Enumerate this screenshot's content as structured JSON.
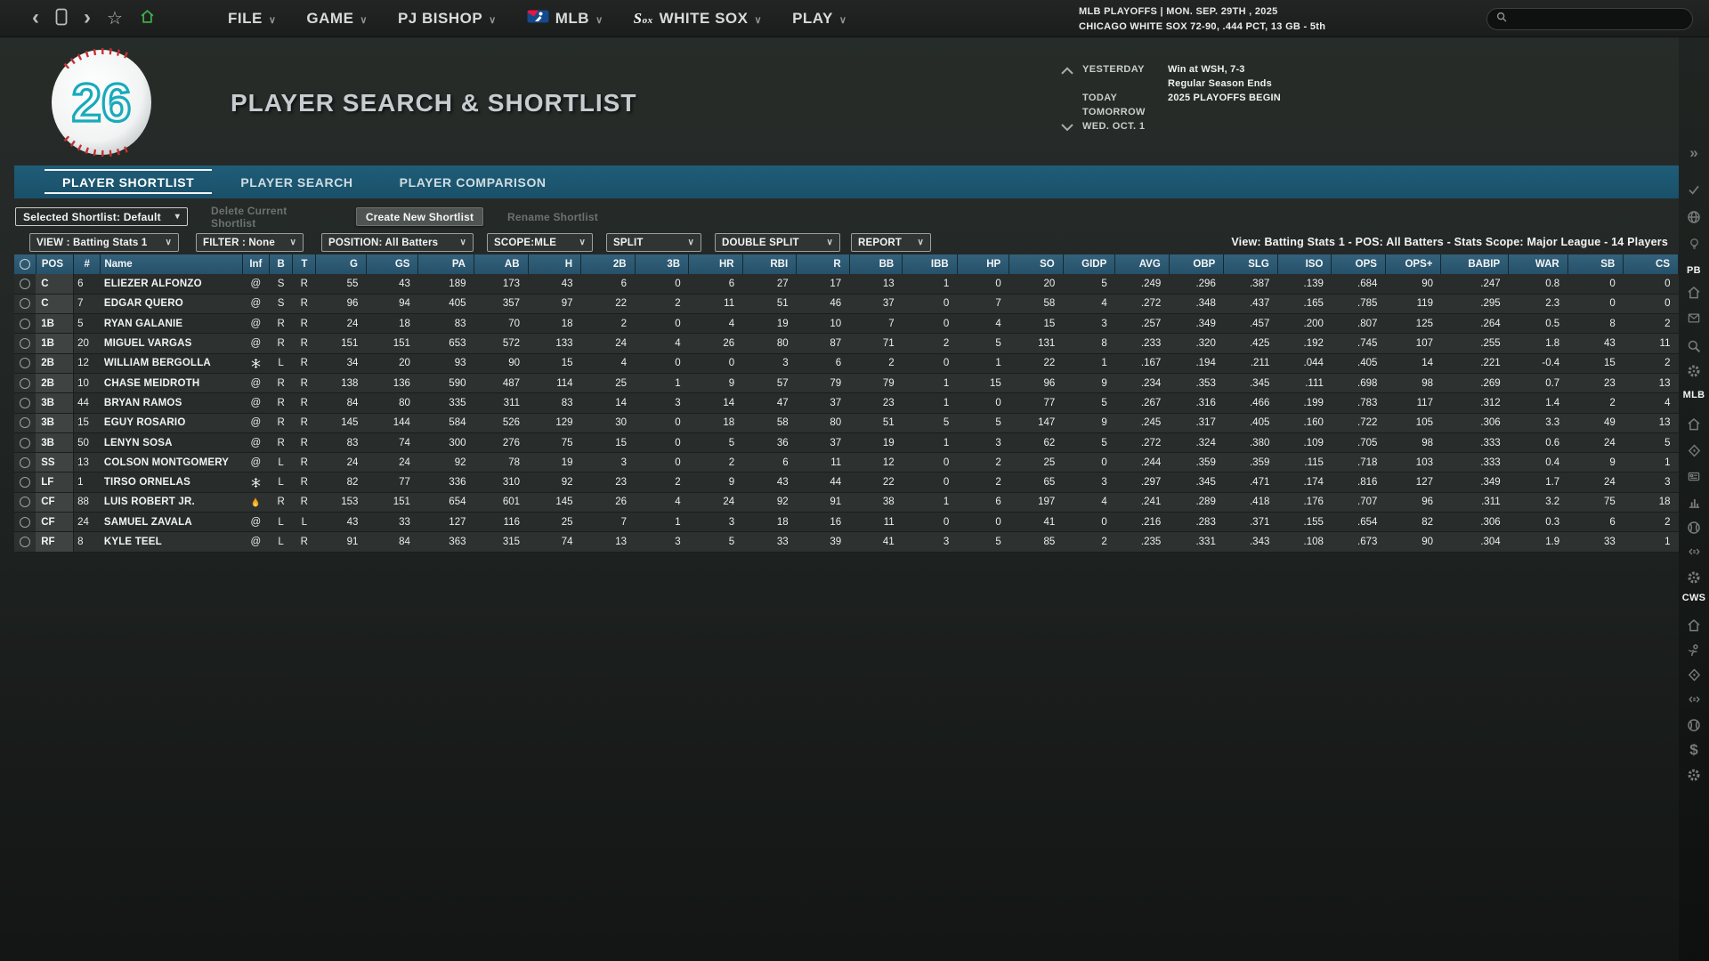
{
  "topbar": {
    "nav_icons": [
      {
        "name": "back-icon",
        "glyph": "‹"
      },
      {
        "name": "phone-icon",
        "glyph": ""
      },
      {
        "name": "forward-icon",
        "glyph": "›"
      },
      {
        "name": "star-icon",
        "glyph": "☆"
      },
      {
        "name": "home-icon",
        "glyph": ""
      }
    ],
    "menus": [
      {
        "label": "FILE",
        "icon": ""
      },
      {
        "label": "GAME",
        "icon": ""
      },
      {
        "label": "PJ BISHOP",
        "icon": ""
      },
      {
        "label": "MLB",
        "icon": "mlb-logo"
      },
      {
        "label": "WHITE SOX",
        "icon": "whitesox-logo"
      },
      {
        "label": "PLAY",
        "icon": ""
      }
    ],
    "status_line1": "MLB PLAYOFFS  |  MON. SEP. 29TH , 2025",
    "status_line2": "CHICAGO WHITE SOX  72-90, .444 PCT, 13 GB - 5th",
    "search_placeholder": ""
  },
  "header": {
    "logo_number": "26",
    "title": "PLAYER SEARCH & SHORTLIST",
    "schedule": [
      {
        "label": "YESTERDAY",
        "value": "Win at WSH, 7-3"
      },
      {
        "label": "",
        "value": "Regular Season Ends"
      },
      {
        "label": "TODAY",
        "value": "2025 PLAYOFFS BEGIN"
      },
      {
        "label": "TOMORROW",
        "value": ""
      },
      {
        "label": "WED. OCT. 1",
        "value": ""
      }
    ]
  },
  "tabs": [
    {
      "label": "PLAYER SHORTLIST",
      "active": true
    },
    {
      "label": "PLAYER SEARCH",
      "active": false
    },
    {
      "label": "PLAYER COMPARISON",
      "active": false
    }
  ],
  "shortlist_controls": {
    "selected": "Selected Shortlist: Default",
    "delete_label": "Delete Current Shortlist",
    "create_label": "Create New Shortlist",
    "rename_label": "Rename Shortlist"
  },
  "filters": {
    "dropdowns": [
      {
        "key": "view",
        "label": "VIEW : Batting Stats 1"
      },
      {
        "key": "filter",
        "label": "FILTER : None"
      },
      {
        "key": "position",
        "label": "POSITION: All Batters"
      },
      {
        "key": "scope",
        "label": "SCOPE:MLE"
      },
      {
        "key": "split",
        "label": "SPLIT"
      },
      {
        "key": "double-split",
        "label": "DOUBLE SPLIT"
      },
      {
        "key": "report",
        "label": "REPORT"
      }
    ],
    "summary": "View: Batting Stats 1 - POS: All Batters - Stats Scope: Major League - 14 Players"
  },
  "table": {
    "columns": [
      "POS",
      "#",
      "Name",
      "Inf",
      "B",
      "T",
      "G",
      "GS",
      "PA",
      "AB",
      "H",
      "2B",
      "3B",
      "HR",
      "RBI",
      "R",
      "BB",
      "IBB",
      "HP",
      "SO",
      "GIDP",
      "AVG",
      "OBP",
      "SLG",
      "ISO",
      "OPS",
      "OPS+",
      "BABIP",
      "WAR",
      "SB",
      "CS"
    ],
    "rows": [
      {
        "pos": "C",
        "num": "6",
        "name": "ELIEZER ALFONZO",
        "inf": "at",
        "b": "S",
        "t": "R",
        "stats": [
          "55",
          "43",
          "189",
          "173",
          "43",
          "6",
          "0",
          "6",
          "27",
          "17",
          "13",
          "1",
          "0",
          "20",
          "5",
          ".249",
          ".296",
          ".387",
          ".139",
          ".684",
          "90",
          ".247",
          "0.8",
          "0",
          "0"
        ]
      },
      {
        "pos": "C",
        "num": "7",
        "name": "EDGAR QUERO",
        "inf": "at",
        "b": "S",
        "t": "R",
        "stats": [
          "96",
          "94",
          "405",
          "357",
          "97",
          "22",
          "2",
          "11",
          "51",
          "46",
          "37",
          "0",
          "7",
          "58",
          "4",
          ".272",
          ".348",
          ".437",
          ".165",
          ".785",
          "119",
          ".295",
          "2.3",
          "0",
          "0"
        ]
      },
      {
        "pos": "1B",
        "num": "5",
        "name": "RYAN GALANIE",
        "inf": "at",
        "b": "R",
        "t": "R",
        "stats": [
          "24",
          "18",
          "83",
          "70",
          "18",
          "2",
          "0",
          "4",
          "19",
          "10",
          "7",
          "0",
          "4",
          "15",
          "3",
          ".257",
          ".349",
          ".457",
          ".200",
          ".807",
          "125",
          ".264",
          "0.5",
          "8",
          "2"
        ]
      },
      {
        "pos": "1B",
        "num": "20",
        "name": "MIGUEL VARGAS",
        "inf": "at",
        "b": "R",
        "t": "R",
        "stats": [
          "151",
          "151",
          "653",
          "572",
          "133",
          "24",
          "4",
          "26",
          "80",
          "87",
          "71",
          "2",
          "5",
          "131",
          "8",
          ".233",
          ".320",
          ".425",
          ".192",
          ".745",
          "107",
          ".255",
          "1.8",
          "43",
          "11"
        ]
      },
      {
        "pos": "2B",
        "num": "12",
        "name": "WILLIAM BERGOLLA",
        "inf": "snowflake",
        "b": "L",
        "t": "R",
        "stats": [
          "34",
          "20",
          "93",
          "90",
          "15",
          "4",
          "0",
          "0",
          "3",
          "6",
          "2",
          "0",
          "1",
          "22",
          "1",
          ".167",
          ".194",
          ".211",
          ".044",
          ".405",
          "14",
          ".221",
          "-0.4",
          "15",
          "2"
        ]
      },
      {
        "pos": "2B",
        "num": "10",
        "name": "CHASE MEIDROTH",
        "inf": "at",
        "b": "R",
        "t": "R",
        "stats": [
          "138",
          "136",
          "590",
          "487",
          "114",
          "25",
          "1",
          "9",
          "57",
          "79",
          "79",
          "1",
          "15",
          "96",
          "9",
          ".234",
          ".353",
          ".345",
          ".111",
          ".698",
          "98",
          ".269",
          "0.7",
          "23",
          "13"
        ]
      },
      {
        "pos": "3B",
        "num": "44",
        "name": "BRYAN RAMOS",
        "inf": "at",
        "b": "R",
        "t": "R",
        "stats": [
          "84",
          "80",
          "335",
          "311",
          "83",
          "14",
          "3",
          "14",
          "47",
          "37",
          "23",
          "1",
          "0",
          "77",
          "5",
          ".267",
          ".316",
          ".466",
          ".199",
          ".783",
          "117",
          ".312",
          "1.4",
          "2",
          "4"
        ]
      },
      {
        "pos": "3B",
        "num": "15",
        "name": "EGUY ROSARIO",
        "inf": "at",
        "b": "R",
        "t": "R",
        "stats": [
          "145",
          "144",
          "584",
          "526",
          "129",
          "30",
          "0",
          "18",
          "58",
          "80",
          "51",
          "5",
          "5",
          "147",
          "9",
          ".245",
          ".317",
          ".405",
          ".160",
          ".722",
          "105",
          ".306",
          "3.3",
          "49",
          "13"
        ]
      },
      {
        "pos": "3B",
        "num": "50",
        "name": "LENYN SOSA",
        "inf": "at",
        "b": "R",
        "t": "R",
        "stats": [
          "83",
          "74",
          "300",
          "276",
          "75",
          "15",
          "0",
          "5",
          "36",
          "37",
          "19",
          "1",
          "3",
          "62",
          "5",
          ".272",
          ".324",
          ".380",
          ".109",
          ".705",
          "98",
          ".333",
          "0.6",
          "24",
          "5"
        ]
      },
      {
        "pos": "SS",
        "num": "13",
        "name": "COLSON MONTGOMERY",
        "inf": "at",
        "b": "L",
        "t": "R",
        "stats": [
          "24",
          "24",
          "92",
          "78",
          "19",
          "3",
          "0",
          "2",
          "6",
          "11",
          "12",
          "0",
          "2",
          "25",
          "0",
          ".244",
          ".359",
          ".359",
          ".115",
          ".718",
          "103",
          ".333",
          "0.4",
          "9",
          "1"
        ]
      },
      {
        "pos": "LF",
        "num": "1",
        "name": "TIRSO ORNELAS",
        "inf": "snowflake",
        "b": "L",
        "t": "R",
        "stats": [
          "82",
          "77",
          "336",
          "310",
          "92",
          "23",
          "2",
          "9",
          "43",
          "44",
          "22",
          "0",
          "2",
          "65",
          "3",
          ".297",
          ".345",
          ".471",
          ".174",
          ".816",
          "127",
          ".349",
          "1.7",
          "24",
          "3"
        ]
      },
      {
        "pos": "CF",
        "num": "88",
        "name": "LUIS ROBERT JR.",
        "inf": "flame",
        "b": "R",
        "t": "R",
        "stats": [
          "153",
          "151",
          "654",
          "601",
          "145",
          "26",
          "4",
          "24",
          "92",
          "91",
          "38",
          "1",
          "6",
          "197",
          "4",
          ".241",
          ".289",
          ".418",
          ".176",
          ".707",
          "96",
          ".311",
          "3.2",
          "75",
          "18"
        ]
      },
      {
        "pos": "CF",
        "num": "24",
        "name": "SAMUEL ZAVALA",
        "inf": "at",
        "b": "L",
        "t": "L",
        "stats": [
          "43",
          "33",
          "127",
          "116",
          "25",
          "7",
          "1",
          "3",
          "18",
          "16",
          "11",
          "0",
          "0",
          "41",
          "0",
          ".216",
          ".283",
          ".371",
          ".155",
          ".654",
          "82",
          ".306",
          "0.3",
          "6",
          "2"
        ]
      },
      {
        "pos": "RF",
        "num": "8",
        "name": "KYLE TEEL",
        "inf": "at",
        "b": "L",
        "t": "R",
        "stats": [
          "91",
          "84",
          "363",
          "315",
          "74",
          "13",
          "3",
          "5",
          "33",
          "39",
          "41",
          "3",
          "5",
          "85",
          "2",
          ".235",
          ".331",
          ".343",
          ".108",
          ".673",
          "90",
          ".304",
          "1.9",
          "33",
          "1"
        ]
      }
    ]
  },
  "sidebar": {
    "items": [
      {
        "type": "icon",
        "name": "expand"
      },
      {
        "type": "icon",
        "name": "check"
      },
      {
        "type": "icon",
        "name": "globe"
      },
      {
        "type": "icon",
        "name": "bulb"
      },
      {
        "type": "label",
        "text": "PB"
      },
      {
        "type": "icon",
        "name": "home"
      },
      {
        "type": "icon",
        "name": "mail"
      },
      {
        "type": "icon",
        "name": "search"
      },
      {
        "type": "icon",
        "name": "gear"
      },
      {
        "type": "label",
        "text": "MLB"
      },
      {
        "type": "icon",
        "name": "home"
      },
      {
        "type": "icon",
        "name": "pin"
      },
      {
        "type": "icon",
        "name": "card"
      },
      {
        "type": "icon",
        "name": "chart"
      },
      {
        "type": "icon",
        "name": "baseball"
      },
      {
        "type": "icon",
        "name": "trade"
      },
      {
        "type": "icon",
        "name": "gear"
      },
      {
        "type": "label",
        "text": "CWS"
      },
      {
        "type": "icon",
        "name": "home"
      },
      {
        "type": "icon",
        "name": "coach"
      },
      {
        "type": "icon",
        "name": "pin"
      },
      {
        "type": "icon",
        "name": "trade"
      },
      {
        "type": "icon",
        "name": "baseball"
      },
      {
        "type": "icon",
        "name": "dollar"
      },
      {
        "type": "icon",
        "name": "gear"
      }
    ]
  },
  "colors": {
    "tab_teal": "#1d5a73",
    "table_header_blue": "#2d5a73",
    "home_green": "#3fae49",
    "flame_orange": "#f5a022",
    "logo_teal": "#18aabb",
    "mlb_blue": "#134a8e",
    "mlb_red": "#e8173d"
  }
}
